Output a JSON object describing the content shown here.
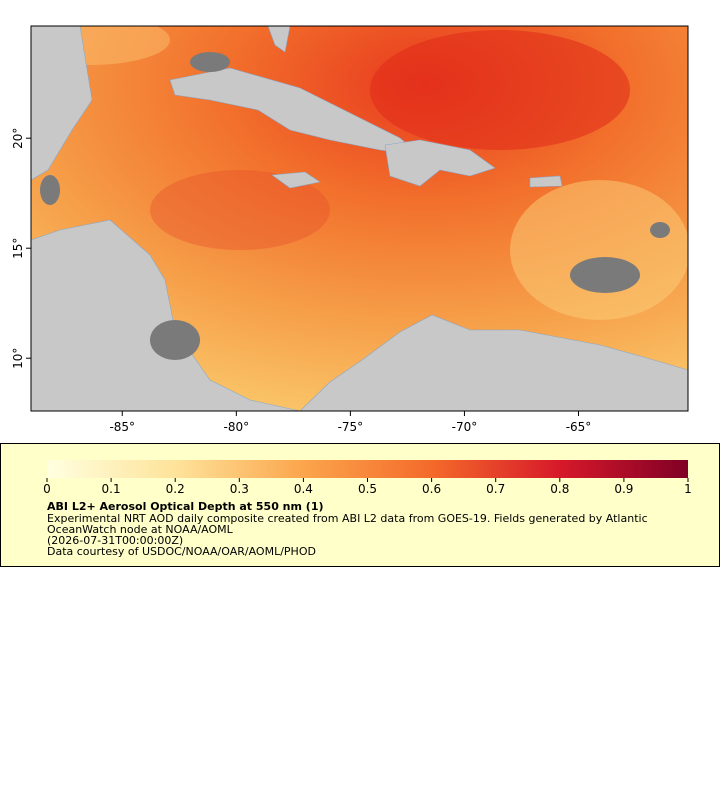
{
  "map": {
    "xlim": [
      -89,
      -60.2
    ],
    "ylim": [
      7.6,
      25.1
    ],
    "xticks": [
      {
        "value": -85,
        "label": "-85°"
      },
      {
        "value": -80,
        "label": "-80°"
      },
      {
        "value": -75,
        "label": "-75°"
      },
      {
        "value": -70,
        "label": "-70°"
      },
      {
        "value": -65,
        "label": "-65°"
      }
    ],
    "yticks": [
      {
        "value": 10,
        "label": "10°"
      },
      {
        "value": 15,
        "label": "15°"
      },
      {
        "value": 20,
        "label": "20°"
      }
    ]
  },
  "colorbar": {
    "lim": [
      0,
      1
    ],
    "ticks": [
      0,
      0.1,
      0.2,
      0.3,
      0.4,
      0.5,
      0.6,
      0.7,
      0.8,
      0.9,
      1
    ]
  },
  "legend": {
    "title": "ABI L2+ Aerosol Optical Depth at 550 nm (1)",
    "lines": [
      "Experimental NRT AOD daily composite created from ABI L2 data from GOES-19. Fields generated by Atlantic",
      "OceanWatch node at NOAA/AOML",
      "(2026-07-31T00:00:00Z)",
      "Data courtesy of USDOC/NOAA/OAR/AOML/PHOD"
    ]
  }
}
